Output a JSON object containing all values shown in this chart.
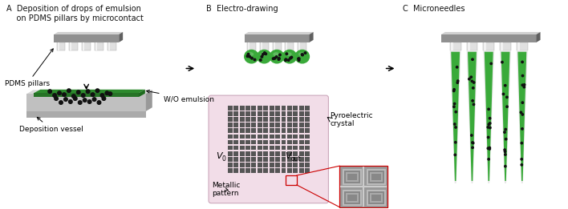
{
  "title_A": "A  Deposition of drops of emulsion\n    on PDMS pillars by microcontact",
  "title_B": "B  Electro-drawing",
  "title_C": "C  Microneedles",
  "label_pdms": "PDMS pillars",
  "label_vessel": "Deposition vessel",
  "label_emulsion": "W/O emulsion",
  "label_metallic": "Metallic\npattern",
  "label_pyro": "Pyroelectric\ncrystal",
  "sub_v0": "0",
  "sub_vout": "out",
  "gray_dark": "#888888",
  "gray_light": "#cccccc",
  "gray_side": "#666666",
  "gray_pale": "#d0d0d0",
  "green_dark": "#2d8a2d",
  "green_mid": "#3aaa3a",
  "pink_bg": "#f0e0ea",
  "red_line": "#cc0000",
  "white": "#ffffff",
  "black": "#000000",
  "fig_width": 7.08,
  "fig_height": 2.61
}
